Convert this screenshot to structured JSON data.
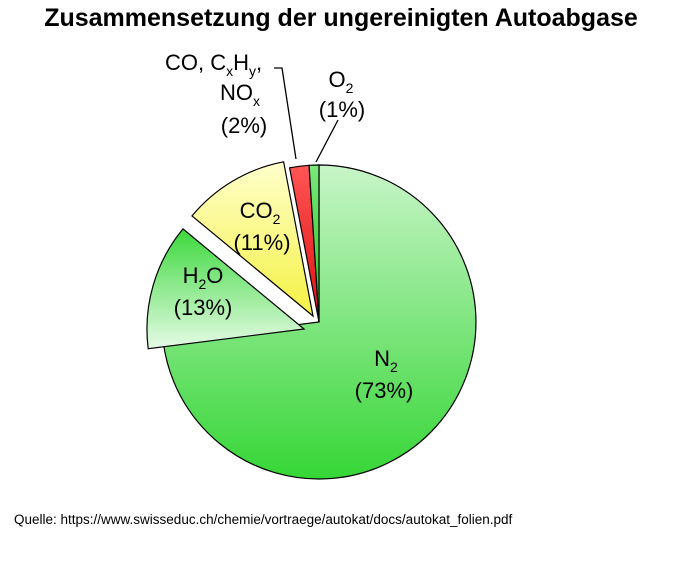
{
  "title": "Zusammensetzung der ungereinigten Autoabgase",
  "source": "Quelle: https://www.swisseduc.ch/chemie/vortraege/autokat/docs/autokat_folien.pdf",
  "colors": {
    "n2": [
      "#c8f5c8",
      "#36d636"
    ],
    "o2": [
      "#7be87b",
      "#1fc21f"
    ],
    "co": [
      "#ff5555",
      "#dd1111"
    ],
    "co2": [
      "#ffffcc",
      "#f4f142"
    ],
    "h2o": [
      "#e6fbe6",
      "#3bd83b"
    ]
  },
  "chart_data": {
    "type": "pie",
    "title": "Zusammensetzung der ungereinigten Autoabgase",
    "slices": [
      {
        "key": "n2",
        "value": 73,
        "label": "N2",
        "percent": "(73%)"
      },
      {
        "key": "h2o",
        "value": 13,
        "label": "H2O",
        "percent": "(13%)"
      },
      {
        "key": "co2",
        "value": 11,
        "label": "CO2",
        "percent": "(11%)"
      },
      {
        "key": "co",
        "value": 2,
        "label": "CO, CxHy, NOx",
        "percent": "(2%)"
      },
      {
        "key": "o2",
        "value": 1,
        "label": "O2",
        "percent": "(1%)"
      }
    ],
    "labels": {
      "n2": {
        "main": "N",
        "sub": "2",
        "pct": "(73%)"
      },
      "o2": {
        "main": "O",
        "sub": "2",
        "pct": "(1%)"
      },
      "co2": {
        "main": "CO",
        "sub": "2",
        "pct": "(11%)"
      },
      "h2o": {
        "pre": "H",
        "sub": "2",
        "post": "O",
        "pct": "(13%)"
      },
      "co": {
        "line1_a": "CO,  C",
        "line1_sx": "x",
        "line1_b": "H",
        "line1_sy": "y",
        "line1_c": ",",
        "line2_a": "NO",
        "line2_sx": "x",
        "pct": "(2%)"
      }
    }
  }
}
